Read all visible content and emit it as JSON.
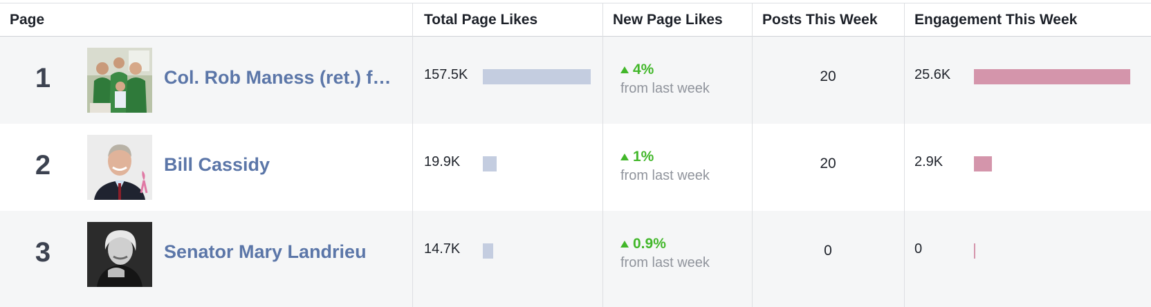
{
  "header": {
    "page": "Page",
    "total_likes": "Total Page Likes",
    "new_likes": "New Page Likes",
    "posts": "Posts This Week",
    "engagement": "Engagement This Week"
  },
  "colors": {
    "link": "#5b76a8",
    "positive": "#42b72a",
    "likes_bar": "#c4cde0",
    "engagement_bar": "#d495ab"
  },
  "rows": [
    {
      "rank": "1",
      "name": "Col. Rob Maness (ret.) f…",
      "total_likes": "157.5K",
      "total_likes_fraction": 1.0,
      "new_likes_pct": "4%",
      "new_likes_note": "from last week",
      "posts": "20",
      "engagement": "25.6K",
      "engagement_fraction": 1.0
    },
    {
      "rank": "2",
      "name": "Bill Cassidy",
      "total_likes": "19.9K",
      "total_likes_fraction": 0.126,
      "new_likes_pct": "1%",
      "new_likes_note": "from last week",
      "posts": "20",
      "engagement": "2.9K",
      "engagement_fraction": 0.113
    },
    {
      "rank": "3",
      "name": "Senator Mary Landrieu",
      "total_likes": "14.7K",
      "total_likes_fraction": 0.093,
      "new_likes_pct": "0.9%",
      "new_likes_note": "from last week",
      "posts": "0",
      "engagement": "0",
      "engagement_fraction": 0.0
    }
  ]
}
